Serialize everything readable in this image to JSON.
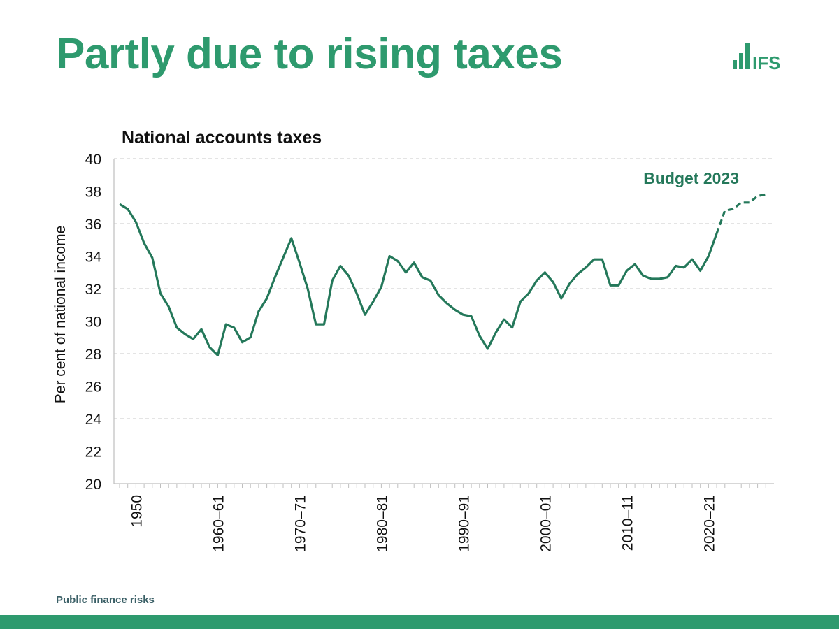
{
  "slide": {
    "title": "Partly due to rising taxes",
    "footer": "Public finance risks",
    "logo_text": "IFS"
  },
  "colors": {
    "brand": "#2e9a6e",
    "series": "#24785a",
    "grid": "#c8c8c8",
    "axis": "#bfbfbf",
    "footer_text": "#3a5f66"
  },
  "chart_data": {
    "type": "line",
    "title": "National accounts taxes",
    "xlabel": "",
    "ylabel": "Per cent of national income",
    "ylim": [
      20,
      40
    ],
    "yticks": [
      20,
      22,
      24,
      26,
      28,
      30,
      32,
      34,
      36,
      38,
      40
    ],
    "grid": "horizontal dashed",
    "xtick_labels": [
      {
        "label": "1950",
        "index": 2
      },
      {
        "label": "1960–61",
        "index": 12
      },
      {
        "label": "1970–71",
        "index": 22
      },
      {
        "label": "1980–81",
        "index": 32
      },
      {
        "label": "1990–91",
        "index": 42
      },
      {
        "label": "2000–01",
        "index": 52
      },
      {
        "label": "2010–11",
        "index": 62
      },
      {
        "label": "2020–21",
        "index": 72
      }
    ],
    "annotation": "Budget 2023",
    "series": [
      {
        "style": "solid",
        "start_index": 0,
        "values": [
          37.2,
          36.9,
          36.1,
          34.8,
          33.9,
          31.7,
          30.9,
          29.6,
          29.2,
          28.9,
          29.5,
          28.4,
          27.9,
          29.8,
          29.6,
          28.7,
          29.0,
          30.6,
          31.4,
          32.7,
          33.9,
          35.1,
          33.6,
          32.0,
          29.8,
          29.8,
          32.5,
          33.4,
          32.8,
          31.7,
          30.4,
          31.2,
          32.1,
          34.0,
          33.7,
          33.0,
          33.6,
          32.7,
          32.5,
          31.6,
          31.1,
          30.7,
          30.4,
          30.3,
          29.1,
          28.3,
          29.3,
          30.1,
          29.6,
          31.2,
          31.7,
          32.5,
          33.0,
          32.4,
          31.4,
          32.3,
          32.9,
          33.3,
          33.8,
          33.8,
          32.2,
          32.2,
          33.1,
          33.5,
          32.8,
          32.6,
          32.6,
          32.7,
          33.4,
          33.3,
          33.8,
          33.1,
          34.0,
          35.4
        ]
      },
      {
        "style": "dashed",
        "start_index": 73,
        "values": [
          35.4,
          36.8,
          36.9,
          37.3,
          37.3,
          37.7,
          37.8
        ]
      }
    ]
  }
}
